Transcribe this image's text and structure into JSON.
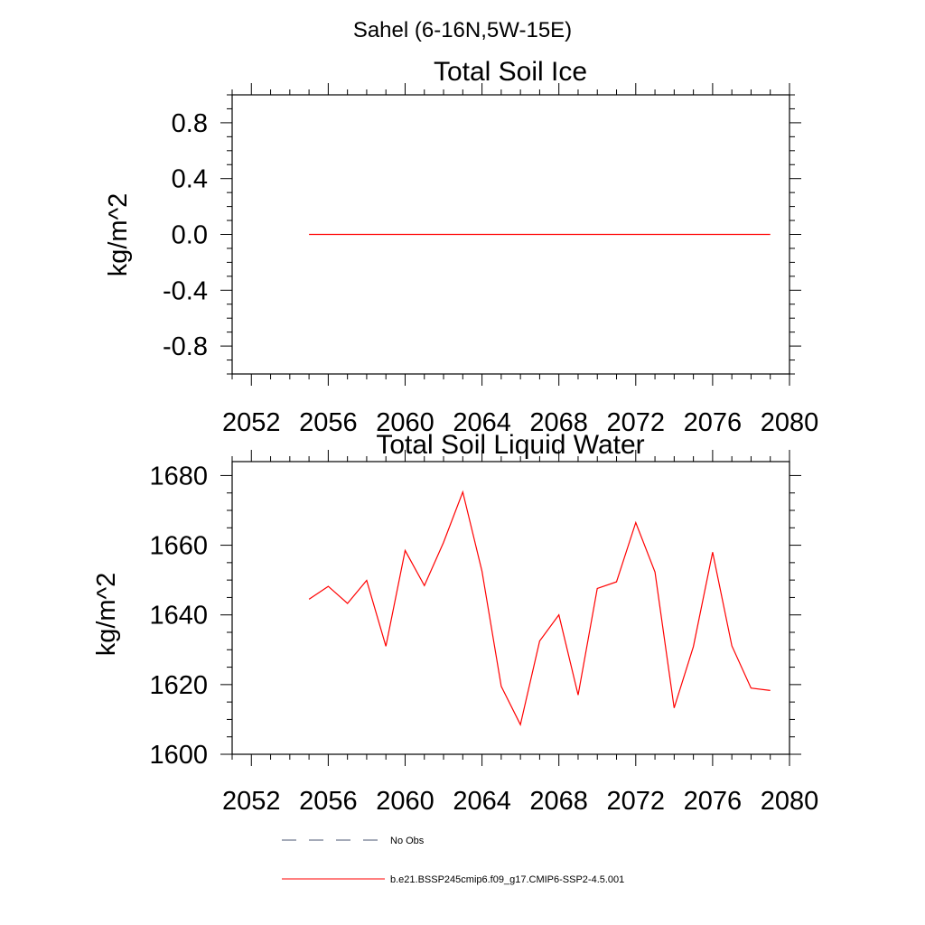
{
  "figure": {
    "title": "Sahel (6-16N,5W-15E)"
  },
  "chart_data": [
    {
      "type": "line",
      "title": "Total Soil Ice",
      "xlabel": "",
      "ylabel": "kg/m^2",
      "xlim": [
        2051,
        2080
      ],
      "ylim": [
        -1.0,
        1.0
      ],
      "x_ticks": [
        2052,
        2056,
        2060,
        2064,
        2068,
        2072,
        2076,
        2080
      ],
      "y_ticks": [
        -0.8,
        -0.4,
        0.0,
        0.4,
        0.8
      ],
      "y_tick_labels": [
        "-0.8",
        "-0.4",
        "0.0",
        "0.4",
        "0.8"
      ],
      "series": [
        {
          "name": "b.e21.BSSP245cmip6.f09_g17.CMIP6-SSP2-4.5.001",
          "color": "#ff0000",
          "x": [
            2055,
            2056,
            2057,
            2058,
            2059,
            2060,
            2061,
            2062,
            2063,
            2064,
            2065,
            2066,
            2067,
            2068,
            2069,
            2070,
            2071,
            2072,
            2073,
            2074,
            2075,
            2076,
            2077,
            2078,
            2079
          ],
          "values": [
            0,
            0,
            0,
            0,
            0,
            0,
            0,
            0,
            0,
            0,
            0,
            0,
            0,
            0,
            0,
            0,
            0,
            0,
            0,
            0,
            0,
            0,
            0,
            0,
            0
          ]
        }
      ]
    },
    {
      "type": "line",
      "title": "Total Soil Liquid Water",
      "xlabel": "",
      "ylabel": "kg/m^2",
      "xlim": [
        2051,
        2080
      ],
      "ylim": [
        1600,
        1684
      ],
      "x_ticks": [
        2052,
        2056,
        2060,
        2064,
        2068,
        2072,
        2076,
        2080
      ],
      "y_ticks": [
        1600,
        1620,
        1640,
        1660,
        1680
      ],
      "y_tick_labels": [
        "1600",
        "1620",
        "1640",
        "1660",
        "1680"
      ],
      "series": [
        {
          "name": "b.e21.BSSP245cmip6.f09_g17.CMIP6-SSP2-4.5.001",
          "color": "#ff0000",
          "x": [
            2055,
            2056,
            2057,
            2058,
            2059,
            2060,
            2061,
            2062,
            2063,
            2064,
            2065,
            2066,
            2067,
            2068,
            2069,
            2070,
            2071,
            2072,
            2073,
            2074,
            2075,
            2076,
            2077,
            2078,
            2079
          ],
          "values": [
            1644.5,
            1648.2,
            1643.3,
            1649.9,
            1631.0,
            1658.5,
            1648.4,
            1660.8,
            1675.3,
            1652.5,
            1619.5,
            1608.5,
            1632.5,
            1640.0,
            1617.0,
            1647.6,
            1649.5,
            1666.5,
            1652.3,
            1613.3,
            1630.9,
            1658.0,
            1631.1,
            1619.0,
            1618.3
          ]
        }
      ]
    }
  ],
  "legend": {
    "entries": [
      {
        "label": "No Obs",
        "color": "#4a5670",
        "style": "dashed"
      },
      {
        "label": "b.e21.BSSP245cmip6.f09_g17.CMIP6-SSP2-4.5.001",
        "color": "#ff0000",
        "style": "solid"
      }
    ]
  }
}
